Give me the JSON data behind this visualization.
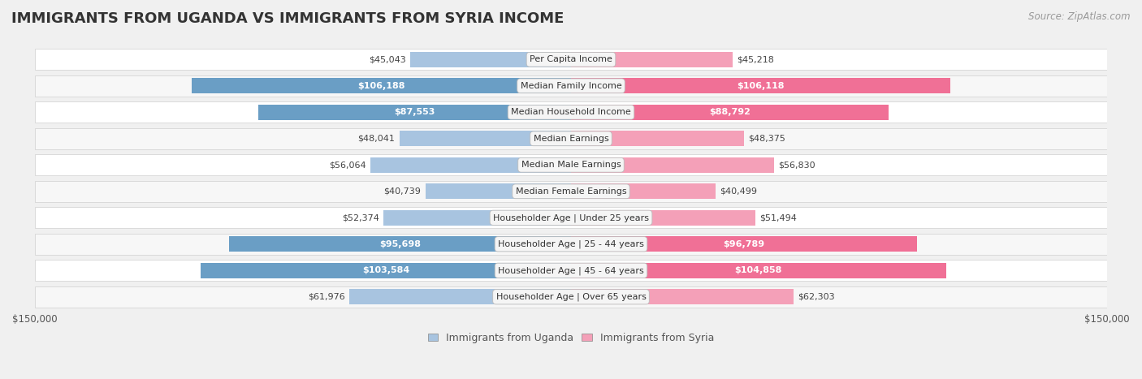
{
  "title": "IMMIGRANTS FROM UGANDA VS IMMIGRANTS FROM SYRIA INCOME",
  "source": "Source: ZipAtlas.com",
  "categories": [
    "Per Capita Income",
    "Median Family Income",
    "Median Household Income",
    "Median Earnings",
    "Median Male Earnings",
    "Median Female Earnings",
    "Householder Age | Under 25 years",
    "Householder Age | 25 - 44 years",
    "Householder Age | 45 - 64 years",
    "Householder Age | Over 65 years"
  ],
  "uganda_values": [
    45043,
    106188,
    87553,
    48041,
    56064,
    40739,
    52374,
    95698,
    103584,
    61976
  ],
  "syria_values": [
    45218,
    106118,
    88792,
    48375,
    56830,
    40499,
    51494,
    96789,
    104858,
    62303
  ],
  "uganda_color": "#a8c4e0",
  "syria_color": "#f4a0b8",
  "uganda_color_dark": "#6a9ec5",
  "syria_color_dark": "#f07096",
  "legend_uganda": "Immigrants from Uganda",
  "legend_syria": "Immigrants from Syria",
  "xlim": 150000,
  "background_color": "#f0f0f0",
  "row_bg_even": "#ffffff",
  "row_bg_odd": "#f7f7f7",
  "category_box_color": "#f5f5f5",
  "high_threshold": 80000,
  "title_fontsize": 13,
  "source_fontsize": 8.5,
  "bar_label_fontsize": 8,
  "category_fontsize": 8,
  "legend_fontsize": 9,
  "axis_fontsize": 8.5
}
